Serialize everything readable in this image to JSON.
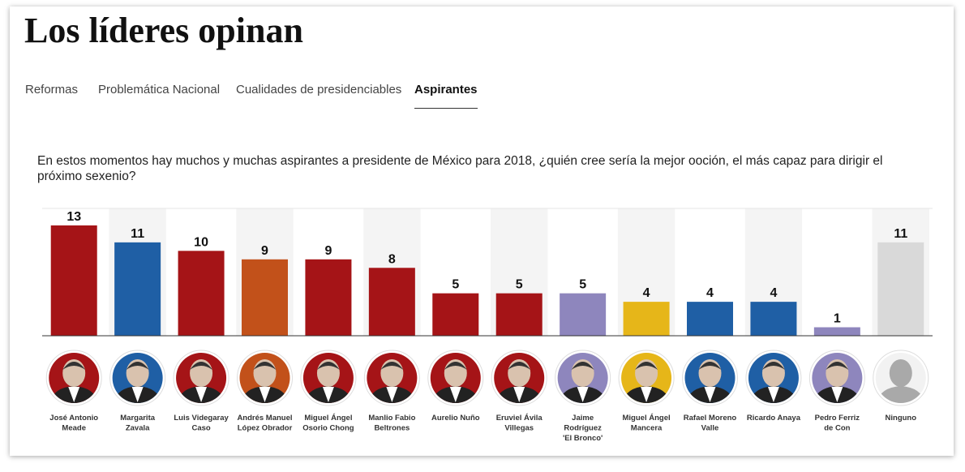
{
  "header": {
    "title": "Los líderes opinan"
  },
  "tabs": [
    "Reformas",
    "Problemática Nacional",
    "Cualidades de presidenciables",
    "Aspirantes"
  ],
  "question": "En estos momentos hay muchos y muchas aspirantes a presidente de México para 2018, ¿quién cree sería la mejor ooción, el más capaz para dirigir el próximo sexenio?",
  "chart_data": {
    "type": "bar",
    "categories": [
      [
        "José Antonio",
        "Meade"
      ],
      [
        "Margarita",
        "Zavala"
      ],
      [
        "Luis Videgaray",
        "Caso"
      ],
      [
        "Andrés Manuel",
        "López Obrador"
      ],
      [
        "Miguel Ángel",
        "Osorio Chong"
      ],
      [
        "Manlio Fabio",
        "Beltrones"
      ],
      [
        "Aurelio Nuño"
      ],
      [
        "Eruviel Ávila",
        "Villegas"
      ],
      [
        "Jaime",
        "Rodríguez",
        "'El Bronco'"
      ],
      [
        "Miguel Ángel",
        "Mancera"
      ],
      [
        "Rafael Moreno",
        "Valle"
      ],
      [
        "Ricardo Anaya"
      ],
      [
        "Pedro Ferriz",
        "de Con"
      ],
      [
        "Ninguno"
      ]
    ],
    "values": [
      13,
      11,
      10,
      9,
      9,
      8,
      5,
      5,
      5,
      4,
      4,
      4,
      1,
      11
    ],
    "colors": [
      "#a51417",
      "#1f5fa5",
      "#a51417",
      "#c2511a",
      "#a51417",
      "#a51417",
      "#a51417",
      "#a51417",
      "#8e86bd",
      "#e6b619",
      "#1f5fa5",
      "#1f5fa5",
      "#8e86bd",
      "#d9d9d9"
    ],
    "ylim": [
      0,
      15
    ]
  }
}
